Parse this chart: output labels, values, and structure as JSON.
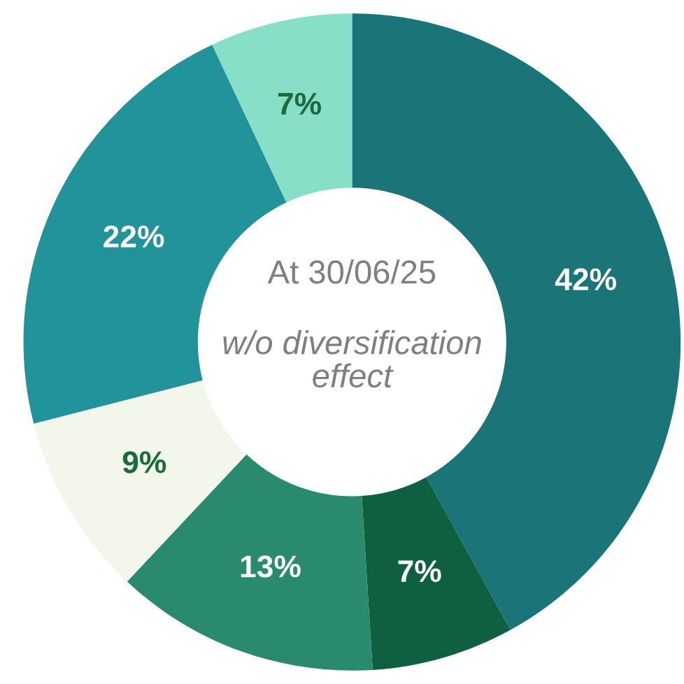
{
  "chart_data": {
    "type": "donut",
    "categories": [
      null,
      null,
      null,
      null,
      null,
      null
    ],
    "values": [
      42,
      7,
      13,
      9,
      22,
      7
    ],
    "value_labels": [
      "42%",
      "7%",
      "13%",
      "9%",
      "22%",
      "7%"
    ],
    "colors": [
      "#1a7478",
      "#0e6040",
      "#2a8a6e",
      "#f3f6ea",
      "#22939a",
      "#88dfc8"
    ],
    "annotations": [
      "At 30/06/25",
      "w/o diversification effect"
    ],
    "legend": false
  }
}
